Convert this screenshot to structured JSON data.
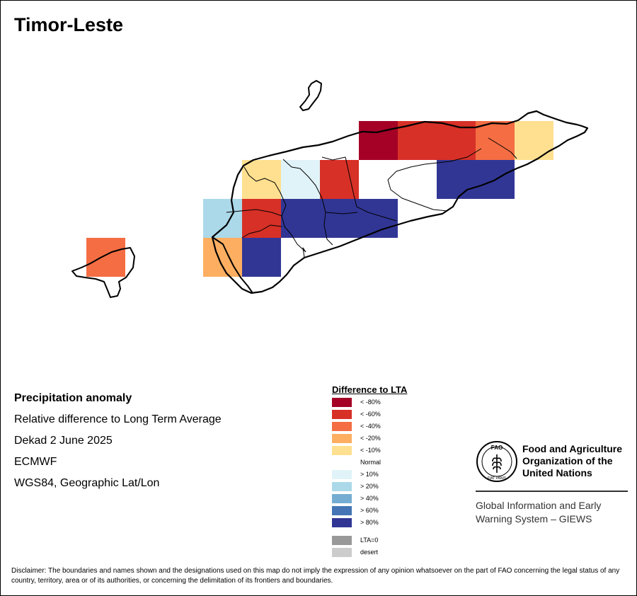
{
  "title": "Timor-Leste",
  "info": {
    "heading": "Precipitation anomaly",
    "line1": "Relative difference to Long Term Average",
    "line2": "Dekad 2 June 2025",
    "line3": "ECMWF",
    "line4": "WGS84, Geographic Lat/Lon"
  },
  "legend": {
    "title": "Difference to LTA",
    "items": [
      {
        "label": "< -80%",
        "color": "#a50026"
      },
      {
        "label": "< -60%",
        "color": "#d73027"
      },
      {
        "label": "< -40%",
        "color": "#f46d43"
      },
      {
        "label": "< -20%",
        "color": "#fdae61"
      },
      {
        "label": "< -10%",
        "color": "#fee090"
      },
      {
        "label": "Normal",
        "color": "#ffffff"
      },
      {
        "label": "> 10%",
        "color": "#e0f3f8"
      },
      {
        "label": "> 20%",
        "color": "#abd9e9"
      },
      {
        "label": "> 40%",
        "color": "#74add1"
      },
      {
        "label": "> 60%",
        "color": "#4575b4"
      },
      {
        "label": "> 80%",
        "color": "#313695"
      }
    ],
    "extra": [
      {
        "label": "LTA=0",
        "color": "#999999"
      },
      {
        "label": "desert",
        "color": "#cccccc"
      }
    ]
  },
  "grid_cells": [
    {
      "row": 0,
      "col": 4,
      "cls": "< -80%"
    },
    {
      "row": 0,
      "col": 5,
      "cls": "< -60%"
    },
    {
      "row": 0,
      "col": 6,
      "cls": "< -60%"
    },
    {
      "row": 0,
      "col": 7,
      "cls": "< -40%"
    },
    {
      "row": 0,
      "col": 8,
      "cls": "< -10%"
    },
    {
      "row": 1,
      "col": 1,
      "cls": "< -10%"
    },
    {
      "row": 1,
      "col": 2,
      "cls": "> 10%"
    },
    {
      "row": 1,
      "col": 3,
      "cls": "< -60%"
    },
    {
      "row": 1,
      "col": 6,
      "cls": "> 80%"
    },
    {
      "row": 1,
      "col": 7,
      "cls": "> 80%"
    },
    {
      "row": 2,
      "col": 0,
      "cls": "> 20%"
    },
    {
      "row": 2,
      "col": 1,
      "cls": "< -60%"
    },
    {
      "row": 2,
      "col": 2,
      "cls": "> 80%"
    },
    {
      "row": 2,
      "col": 3,
      "cls": "> 80%"
    },
    {
      "row": 2,
      "col": 4,
      "cls": "> 80%"
    },
    {
      "row": 3,
      "col": -3,
      "cls": "< -40%"
    },
    {
      "row": 3,
      "col": 0,
      "cls": "< -20%"
    },
    {
      "row": 3,
      "col": 1,
      "cls": "> 80%"
    }
  ],
  "fao": {
    "org_line1": "Food and Agriculture",
    "org_line2": "Organization of the",
    "org_line3": "United Nations",
    "giews_line1": "Global Information and Early",
    "giews_line2": "Warning System – GIEWS",
    "logo_text": "FAO",
    "logo_motto": "FIAT PANIS"
  },
  "disclaimer": "Disclaimer: The boundaries and names shown and the designations used on this map do not imply the expression of any opinion whatsoever on the part of FAO concerning the legal status of any country, territory, area or of its authorities, or concerning the delimitation of its frontiers and boundaries."
}
